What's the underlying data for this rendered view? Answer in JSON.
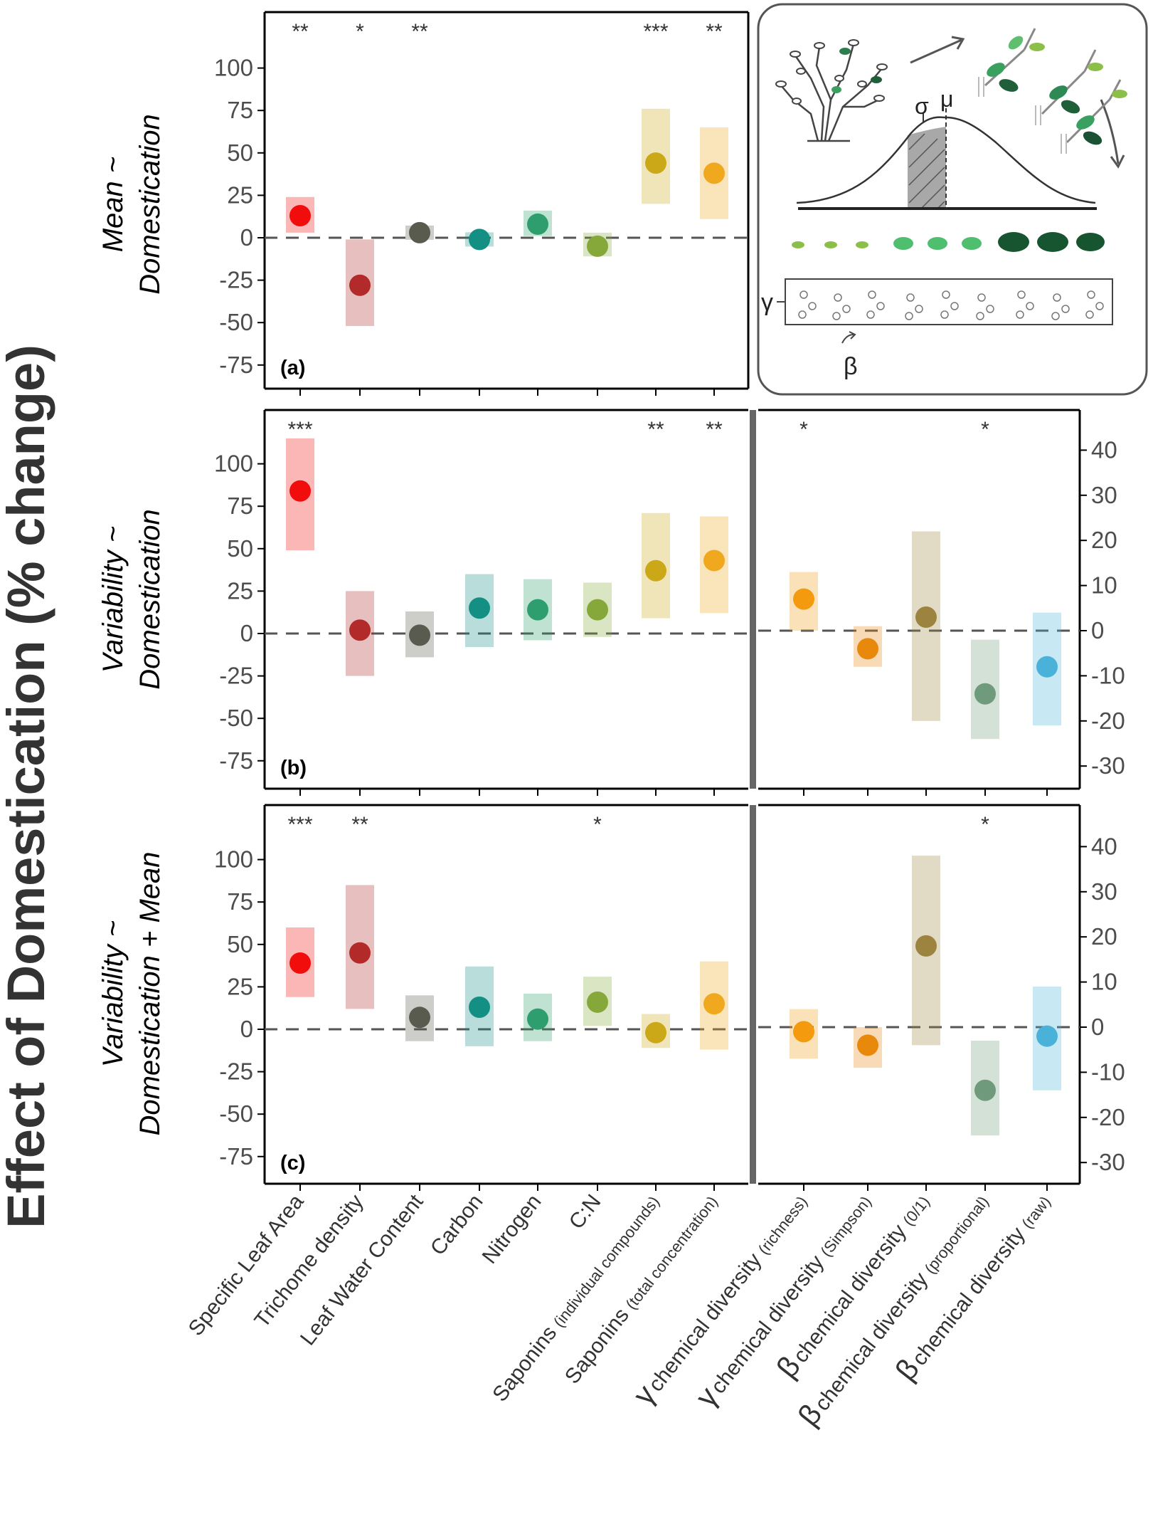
{
  "figure": {
    "y_axis_title": "Effect of Domestication (% change)",
    "row_labels": [
      [
        "Mean ~",
        "Domestication"
      ],
      [
        "Variability ~",
        "Domestication"
      ],
      [
        "Variability ~",
        "Domestication + Mean"
      ]
    ],
    "x_categories_left": [
      {
        "main": "Specific Leaf Area",
        "sub": ""
      },
      {
        "main": "Trichome density",
        "sub": ""
      },
      {
        "main": "Leaf Water Content",
        "sub": ""
      },
      {
        "main": "Carbon",
        "sub": ""
      },
      {
        "main": "Nitrogen",
        "sub": ""
      },
      {
        "main": "C:N",
        "sub": ""
      },
      {
        "main": "Saponins",
        "sub": "(individual compounds)"
      },
      {
        "main": "Saponins",
        "sub": "(total concentration)"
      }
    ],
    "x_categories_right": [
      {
        "greek": "γ",
        "main": "chemical diversity",
        "sub": "(richness)"
      },
      {
        "greek": "γ",
        "main": "chemical diversity",
        "sub": "(Simpson)"
      },
      {
        "greek": "β",
        "main": "chemical diversity",
        "sub": "(0/1)"
      },
      {
        "greek": "β",
        "main": "chemical diversity",
        "sub": "(proportional)"
      },
      {
        "greek": "β",
        "main": "chemical diversity",
        "sub": "(raw)"
      }
    ],
    "left_colors": [
      "#f20d0d",
      "#b22a2a",
      "#5a5b4f",
      "#138f84",
      "#2f9e6e",
      "#86a83a",
      "#cba817",
      "#f0a81f"
    ],
    "right_colors": [
      "#f39a0f",
      "#e8890c",
      "#9c8340",
      "#6f9a7c",
      "#4ab2d8"
    ],
    "inset": {
      "sigma": "σ",
      "mu": "μ",
      "gamma": "γ",
      "beta": "β"
    }
  },
  "chart_data": [
    {
      "panel": "(a)",
      "type": "scatter",
      "error_style": "interval bars",
      "ylabel": "Mean ~ Domestication",
      "ylim": [
        -85,
        128
      ],
      "yticks": [
        100,
        75,
        50,
        25,
        0,
        -25,
        -50,
        -75
      ],
      "categories": [
        "Specific Leaf Area",
        "Trichome density",
        "Leaf Water Content",
        "Carbon",
        "Nitrogen",
        "C:N",
        "Saponins (individual compounds)",
        "Saponins (total concentration)"
      ],
      "values": [
        13,
        -28,
        3,
        -1,
        8,
        -5,
        44,
        38
      ],
      "lower": [
        3,
        -52,
        1,
        -1,
        1,
        -11,
        20,
        11
      ],
      "upper": [
        24,
        -1,
        7,
        -1,
        16,
        3,
        76,
        65
      ],
      "significance": [
        "**",
        "*",
        "**",
        "",
        "",
        "",
        "***",
        "**"
      ]
    },
    {
      "panel": "(b)",
      "type": "scatter",
      "ylabel": "Variability ~ Domestication",
      "ylim": [
        -85,
        128
      ],
      "yticks": [
        100,
        75,
        50,
        25,
        0,
        -25,
        -50,
        -75
      ],
      "categories": [
        "Specific Leaf Area",
        "Trichome density",
        "Leaf Water Content",
        "Carbon",
        "Nitrogen",
        "C:N",
        "Saponins (individual compounds)",
        "Saponins (total concentration)"
      ],
      "values": [
        84,
        2,
        -1,
        15,
        14,
        14,
        37,
        43
      ],
      "lower": [
        49,
        -25,
        -14,
        -8,
        -4,
        -2,
        9,
        12
      ],
      "upper": [
        115,
        25,
        13,
        35,
        32,
        30,
        71,
        69
      ],
      "significance": [
        "***",
        "",
        "",
        "",
        "",
        "",
        "**",
        "**"
      ]
    },
    {
      "panel": "(b) right",
      "type": "scatter",
      "ylim": [
        -31,
        47
      ],
      "yticks": [
        40,
        30,
        20,
        10,
        0,
        -10,
        -20,
        -30
      ],
      "categories": [
        "γ chemical diversity (richness)",
        "γ chemical diversity (Simpson)",
        "β chemical diversity (0/1)",
        "β chemical diversity (proportional)",
        "β chemical diversity (raw)"
      ],
      "values": [
        7,
        -4,
        3,
        -14,
        -8
      ],
      "lower": [
        0,
        -8,
        -20,
        -24,
        -21
      ],
      "upper": [
        13,
        1,
        22,
        -2,
        4
      ],
      "significance": [
        "*",
        "",
        "",
        "*",
        ""
      ]
    },
    {
      "panel": "(c)",
      "type": "scatter",
      "ylabel": "Variability ~ Domestication + Mean",
      "ylim": [
        -85,
        128
      ],
      "yticks": [
        100,
        75,
        50,
        25,
        0,
        -25,
        -50,
        -75
      ],
      "categories": [
        "Specific Leaf Area",
        "Trichome density",
        "Leaf Water Content",
        "Carbon",
        "Nitrogen",
        "C:N",
        "Saponins (individual compounds)",
        "Saponins (total concentration)"
      ],
      "values": [
        39,
        45,
        7,
        13,
        6,
        16,
        -2,
        15
      ],
      "lower": [
        19,
        12,
        -7,
        -10,
        -7,
        2,
        -11,
        -12
      ],
      "upper": [
        60,
        85,
        20,
        37,
        21,
        31,
        9,
        40
      ],
      "significance": [
        "***",
        "**",
        "",
        "",
        "",
        "*",
        "",
        ""
      ]
    },
    {
      "panel": "(c) right",
      "type": "scatter",
      "ylim": [
        -31,
        47
      ],
      "yticks": [
        40,
        30,
        20,
        10,
        0,
        -10,
        -20,
        -30
      ],
      "categories": [
        "γ chemical diversity (richness)",
        "γ chemical diversity (Simpson)",
        "β chemical diversity (0/1)",
        "β chemical diversity (proportional)",
        "β chemical diversity (raw)"
      ],
      "values": [
        -1,
        -4,
        18,
        -14,
        -2
      ],
      "lower": [
        -7,
        -9,
        -4,
        -24,
        -14
      ],
      "upper": [
        4,
        0,
        38,
        -3,
        9
      ],
      "significance": [
        "",
        "",
        "",
        "*",
        ""
      ]
    }
  ]
}
